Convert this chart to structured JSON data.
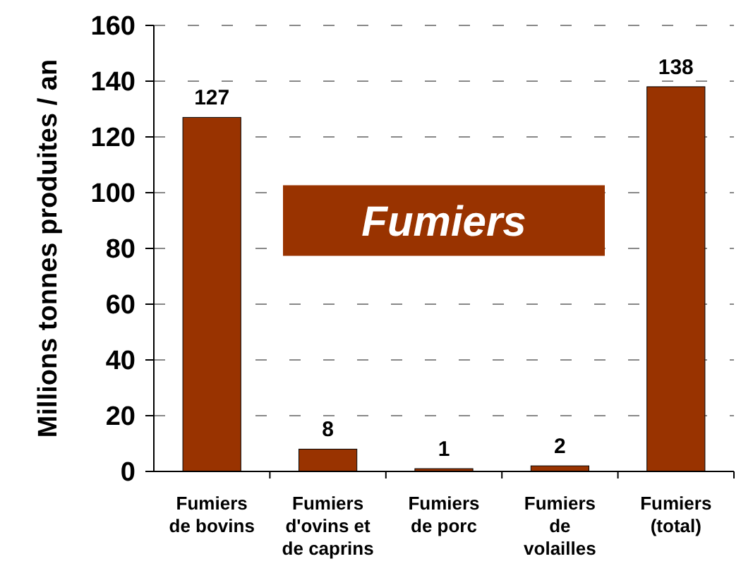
{
  "chart_data": {
    "type": "bar",
    "ylabel": "Millions tonnes produites / an",
    "categories": [
      "Fumiers\nde bovins",
      "Fumiers\nd'ovins et\nde caprins",
      "Fumiers\nde porc",
      "Fumiers\nde\nvolailles",
      "Fumiers\n(total)"
    ],
    "values": [
      127,
      8,
      1,
      2,
      138
    ],
    "color": "#993300",
    "data_labels": true,
    "ylim": [
      0,
      160
    ],
    "yticks": [
      0,
      20,
      40,
      60,
      80,
      100,
      120,
      140,
      160
    ],
    "grid": "y",
    "annotations": [
      "Fumiers"
    ]
  }
}
